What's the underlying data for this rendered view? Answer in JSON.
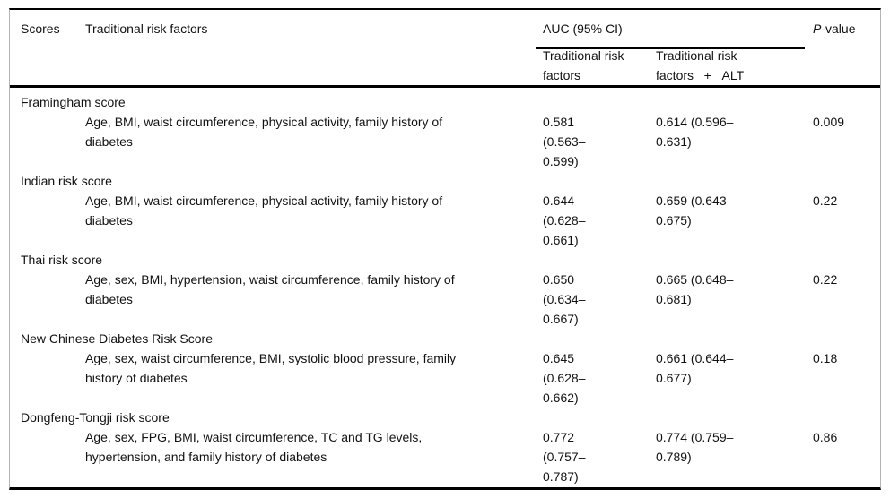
{
  "table": {
    "header": {
      "col_scores": "Scores",
      "col_risk_factors": "Traditional risk factors",
      "col_auc_group": "AUC (95% CI)",
      "sub_auc_traditional": "Traditional risk\nfactors",
      "sub_auc_traditional_alt": "Traditional risk\nfactors   +   ALT",
      "p_value_italic": "P",
      "p_value_rest": "-value"
    },
    "rows": [
      {
        "score": "Framingham score",
        "factors": "Age, BMI, waist circumference, physical activity, family history of\ndiabetes",
        "auc_traditional": "0.581\n(0.563–\n0.599)",
        "auc_traditional_alt": "0.614 (0.596–\n0.631)",
        "p_value": "0.009"
      },
      {
        "score": "Indian risk score",
        "factors": "Age, BMI, waist circumference, physical activity, family history of\ndiabetes",
        "auc_traditional": "0.644\n(0.628–\n0.661)",
        "auc_traditional_alt": "0.659 (0.643–\n0.675)",
        "p_value": "0.22"
      },
      {
        "score": "Thai risk score",
        "factors": "Age, sex, BMI, hypertension, waist circumference, family history of\ndiabetes",
        "auc_traditional": "0.650\n(0.634–\n0.667)",
        "auc_traditional_alt": "0.665 (0.648–\n0.681)",
        "p_value": "0.22"
      },
      {
        "score": "New Chinese Diabetes Risk Score",
        "factors": "Age, sex, waist circumference, BMI, systolic blood pressure, family\nhistory of diabetes",
        "auc_traditional": "0.645\n(0.628–\n0.662)",
        "auc_traditional_alt": "0.661 (0.644–\n0.677)",
        "p_value": "0.18"
      },
      {
        "score": "Dongfeng-Tongji risk score",
        "factors": "Age, sex, FPG, BMI, waist circumference, TC and TG levels,\nhypertension, and family history of diabetes",
        "auc_traditional": "0.772\n(0.757–\n0.787)",
        "auc_traditional_alt": "0.774 (0.759–\n0.789)",
        "p_value": "0.86"
      }
    ]
  }
}
